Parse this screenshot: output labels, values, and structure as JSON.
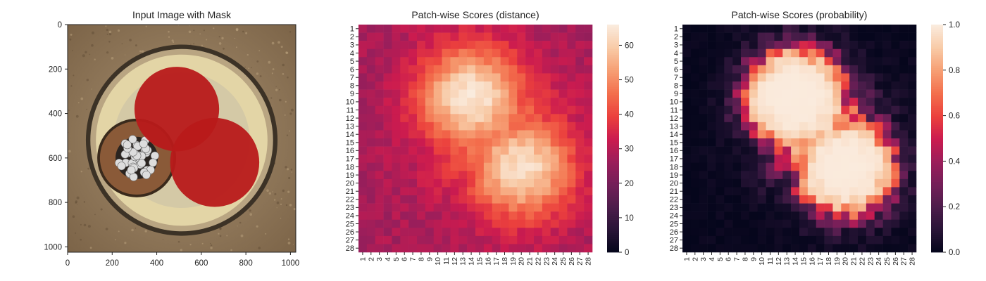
{
  "chart_data": [
    {
      "type": "image",
      "title": "Input Image with Mask",
      "xlabel": "",
      "ylabel": "",
      "xlim": [
        0,
        1024
      ],
      "ylim": [
        1024,
        0
      ],
      "x_ticks": [
        0,
        200,
        400,
        600,
        800,
        1000
      ],
      "y_ticks": [
        0,
        200,
        400,
        600,
        800,
        1000
      ],
      "image_content": {
        "background": "brownish textured surface",
        "object": "round cable cross-section with beige insulation",
        "copper_core": {
          "center": [
            310,
            600
          ],
          "radius": 165,
          "color": "#8a5a38"
        },
        "strands_color": "#dddddd",
        "mask_color": "#b81a1a",
        "mask_circles": [
          {
            "center": [
              490,
              380
            ],
            "radius": 190
          },
          {
            "center": [
              660,
              620
            ],
            "radius": 200
          }
        ]
      }
    },
    {
      "type": "heatmap",
      "title": "Patch-wise Scores (distance)",
      "xlabel": "",
      "ylabel": "",
      "rows": 28,
      "cols": 28,
      "row_labels": [
        "1",
        "2",
        "3",
        "4",
        "5",
        "6",
        "7",
        "8",
        "9",
        "10",
        "11",
        "12",
        "13",
        "14",
        "15",
        "16",
        "17",
        "18",
        "19",
        "20",
        "21",
        "22",
        "23",
        "24",
        "25",
        "26",
        "27",
        "28"
      ],
      "col_labels": [
        "1",
        "2",
        "3",
        "4",
        "5",
        "6",
        "7",
        "8",
        "9",
        "10",
        "11",
        "12",
        "13",
        "14",
        "15",
        "16",
        "17",
        "18",
        "19",
        "20",
        "21",
        "22",
        "23",
        "24",
        "25",
        "26",
        "27",
        "28"
      ],
      "vmin": 0,
      "vmax": 66,
      "colorbar_ticks": [
        0,
        10,
        20,
        30,
        40,
        50,
        60
      ],
      "colormap": "rocket",
      "background_level": 28,
      "hotspots": [
        {
          "row": 9.5,
          "col": 14,
          "peak": 66,
          "spread": 4.5
        },
        {
          "row": 18,
          "col": 20,
          "peak": 64,
          "spread": 4.5
        },
        {
          "row": 14,
          "col": 17,
          "peak": 50,
          "spread": 5.5
        }
      ]
    },
    {
      "type": "heatmap",
      "title": "Patch-wise Scores (probability)",
      "xlabel": "",
      "ylabel": "",
      "rows": 28,
      "cols": 28,
      "row_labels": [
        "1",
        "2",
        "3",
        "4",
        "5",
        "6",
        "7",
        "8",
        "9",
        "10",
        "11",
        "12",
        "13",
        "14",
        "15",
        "16",
        "17",
        "18",
        "19",
        "20",
        "21",
        "22",
        "23",
        "24",
        "25",
        "26",
        "27",
        "28"
      ],
      "col_labels": [
        "1",
        "2",
        "3",
        "4",
        "5",
        "6",
        "7",
        "8",
        "9",
        "10",
        "11",
        "12",
        "13",
        "14",
        "15",
        "16",
        "17",
        "18",
        "19",
        "20",
        "21",
        "22",
        "23",
        "24",
        "25",
        "26",
        "27",
        "28"
      ],
      "vmin": 0.0,
      "vmax": 1.0,
      "colorbar_ticks": [
        "0.0",
        "0.2",
        "0.4",
        "0.6",
        "0.8",
        "1.0"
      ],
      "colormap": "rocket",
      "derived_from": "distance scores through a sigmoid",
      "sigmoid_center": 42,
      "sigmoid_scale": 3.2
    }
  ]
}
